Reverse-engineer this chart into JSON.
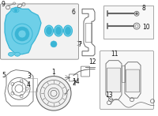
{
  "bg_color": "#ffffff",
  "highlight_color": "#3ab5d5",
  "highlight_fill": "#6ecfe8",
  "outline_color": "#666666",
  "label_color": "#111111",
  "box_edge_color": "#999999",
  "figsize": [
    2.0,
    1.47
  ],
  "dpi": 100
}
